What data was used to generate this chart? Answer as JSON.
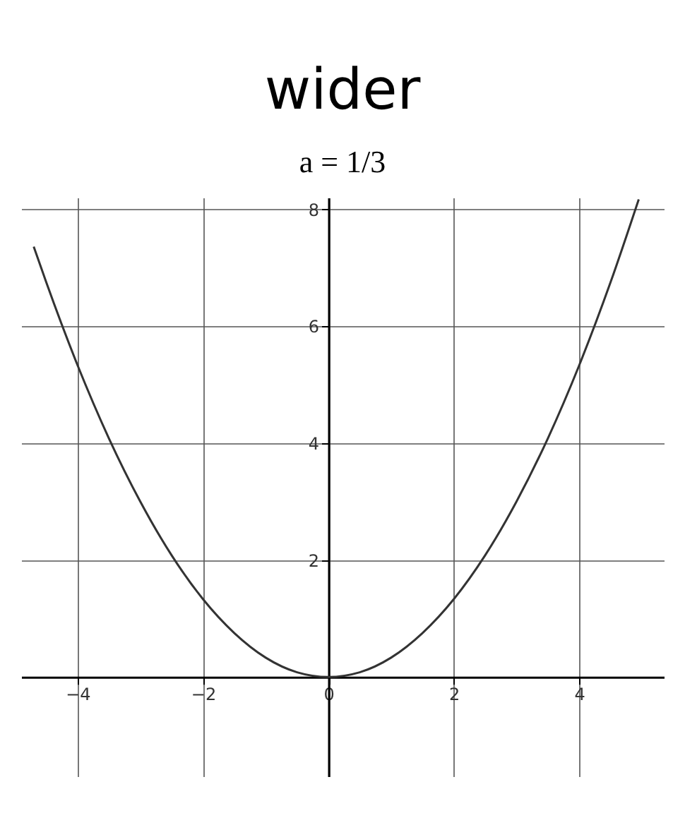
{
  "chart_data": {
    "type": "line",
    "title": "wider",
    "subtitle": "a = 1/3",
    "x": [
      -4.7,
      -4.5,
      -4,
      -3.5,
      -3,
      -2.5,
      -2,
      -1.5,
      -1,
      -0.5,
      0,
      0.5,
      1,
      1.5,
      2,
      2.5,
      3,
      3.5,
      4,
      4.5,
      4.95
    ],
    "values": [
      7.36,
      6.75,
      5.33,
      4.08,
      3,
      2.08,
      1.33,
      0.75,
      0.33,
      0.08,
      0,
      0.08,
      0.33,
      0.75,
      1.33,
      2.08,
      3,
      4.08,
      5.33,
      6.75,
      8.17
    ],
    "color": "#333333",
    "xlim": [
      -4.9,
      5.35
    ],
    "ylim": [
      -1.7,
      8.2
    ],
    "xticks": [
      -4,
      -2,
      0,
      2,
      4
    ],
    "yticks": [
      2,
      4,
      6,
      8
    ],
    "grid": true,
    "line_style": "solid"
  }
}
